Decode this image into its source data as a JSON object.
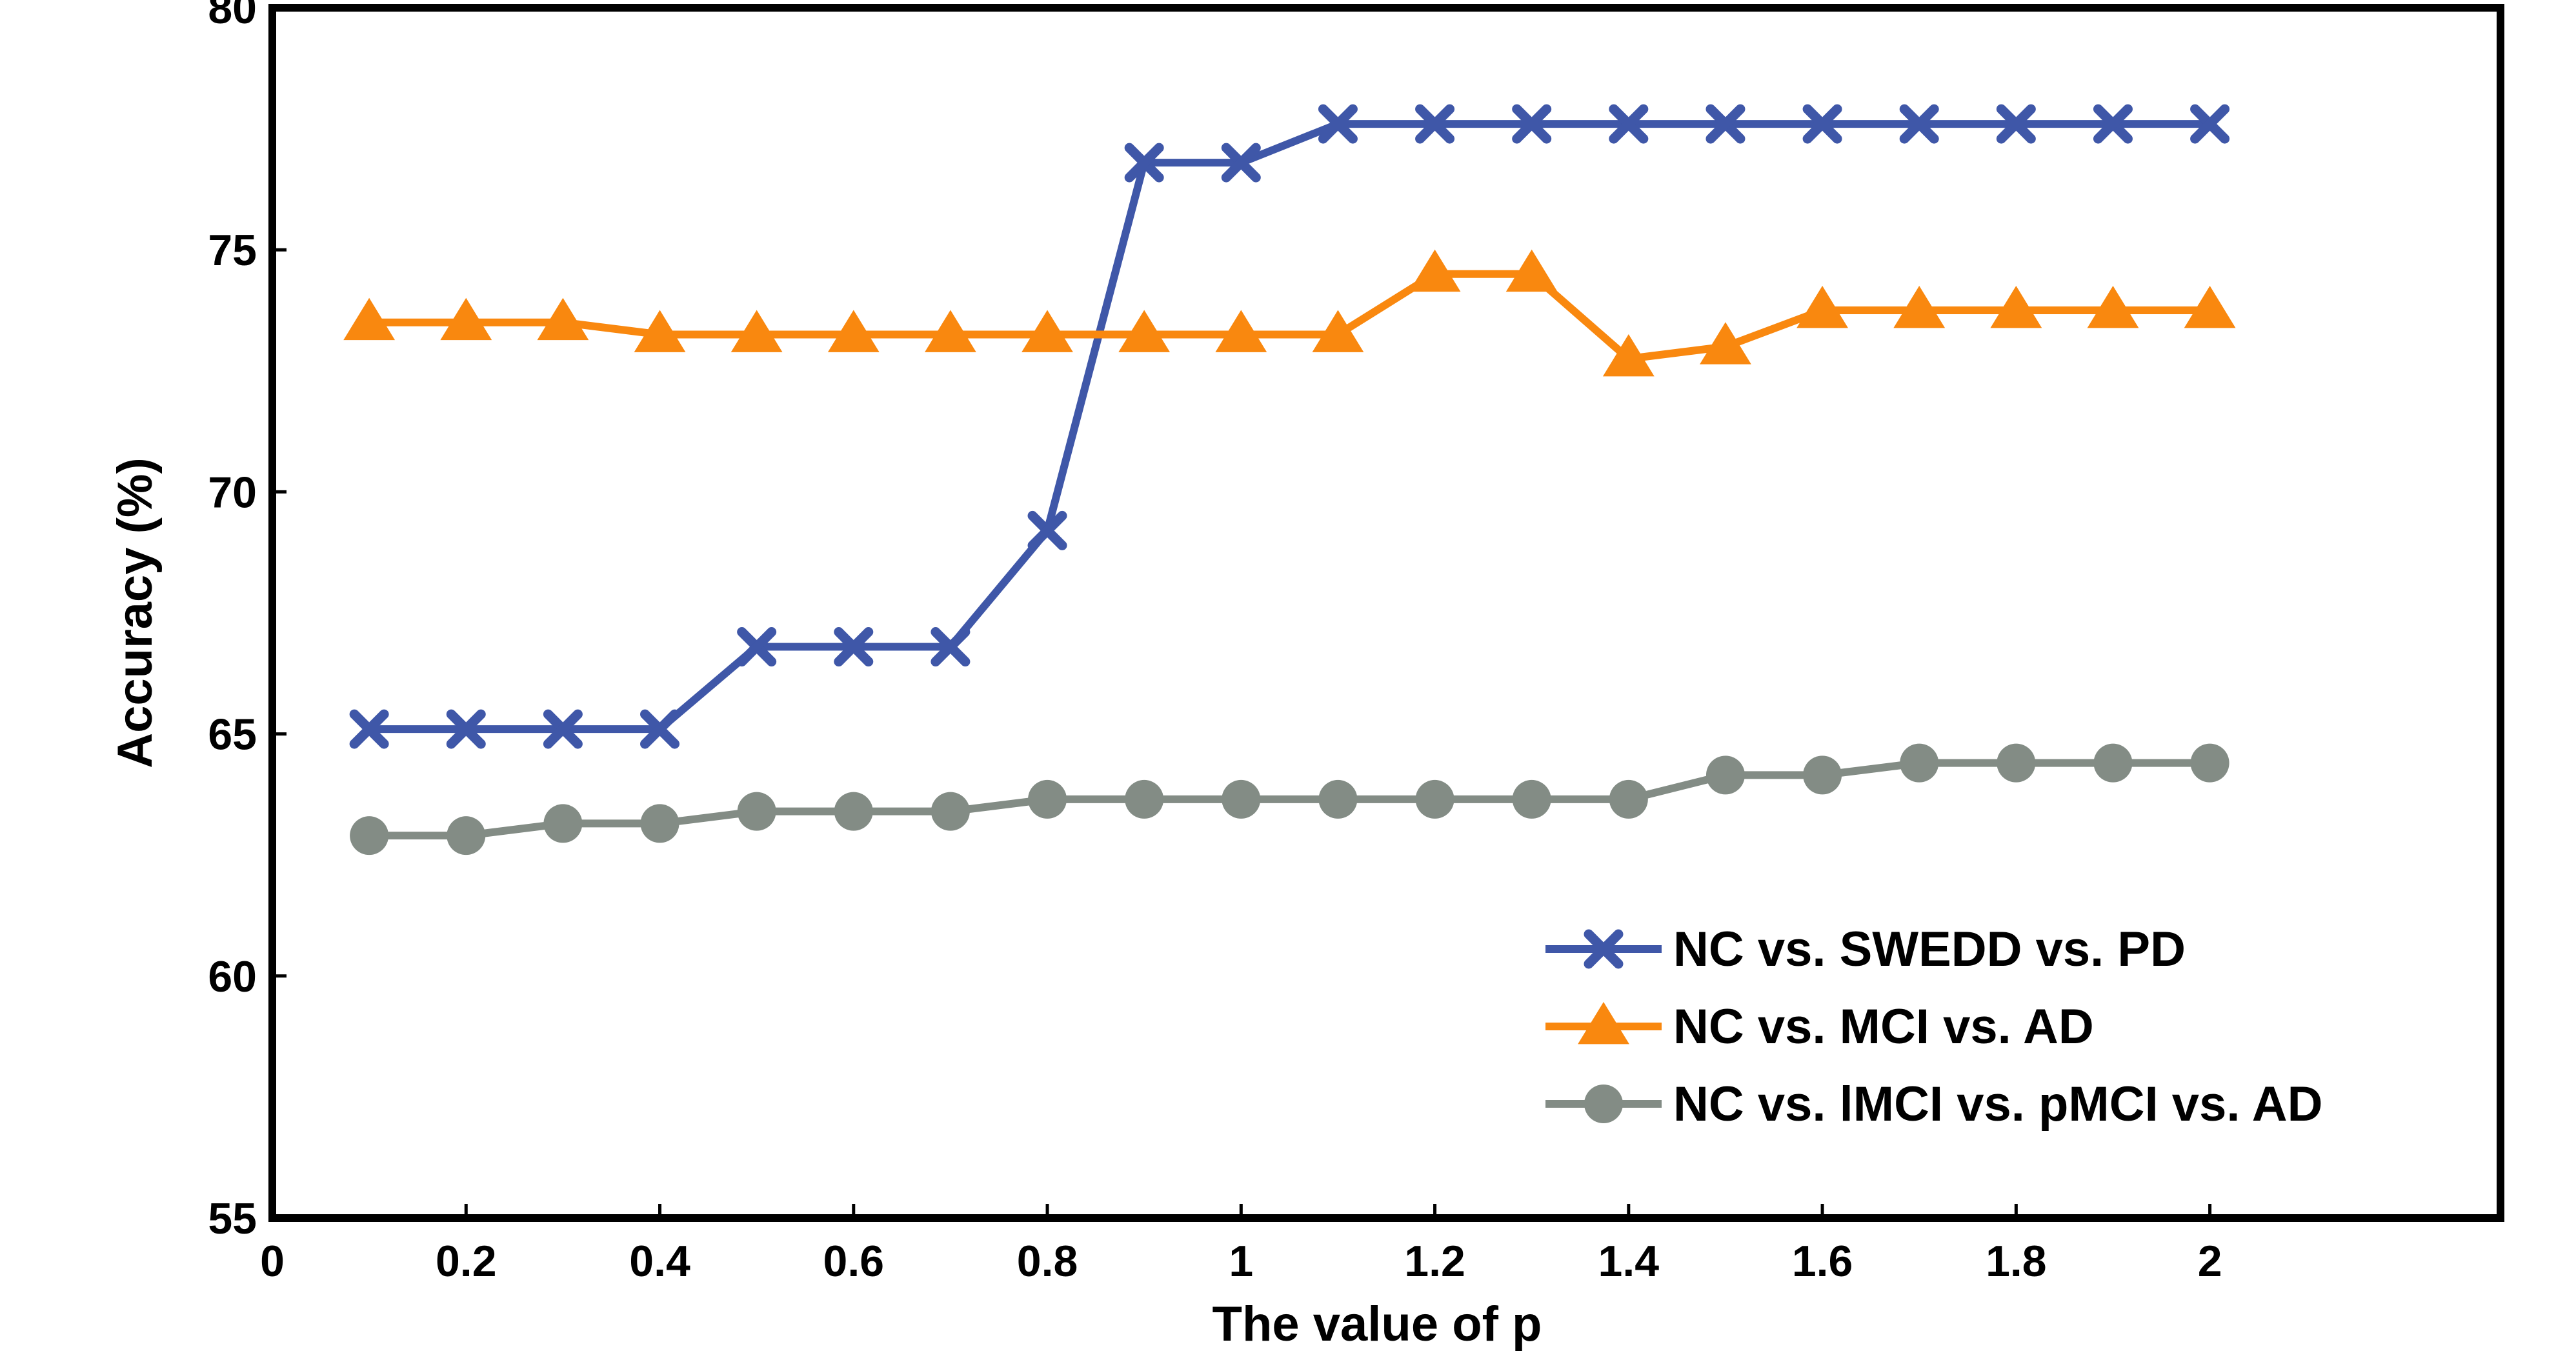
{
  "chart_data": {
    "type": "line",
    "xlabel": "The value of p",
    "ylabel": "Accuracy (%)",
    "xlim": [
      0,
      2.3
    ],
    "ylim": [
      55,
      80
    ],
    "x_ticks": [
      0,
      0.2,
      0.4,
      0.6,
      0.8,
      1,
      1.2,
      1.4,
      1.6,
      1.8,
      2
    ],
    "x_tick_labels": [
      "0",
      "0.2",
      "0.4",
      "0.6",
      "0.8",
      "1",
      "1.2",
      "1.4",
      "1.6",
      "1.8",
      "2"
    ],
    "y_ticks": [
      55,
      60,
      65,
      70,
      75,
      80
    ],
    "y_tick_labels": [
      "55",
      "60",
      "65",
      "70",
      "75",
      "80"
    ],
    "grid": false,
    "legend_position": "bottom-right",
    "x": [
      0.1,
      0.2,
      0.3,
      0.4,
      0.5,
      0.6,
      0.7,
      0.8,
      0.9,
      1.0,
      1.1,
      1.2,
      1.3,
      1.4,
      1.5,
      1.6,
      1.7,
      1.8,
      1.9,
      2.0
    ],
    "series": [
      {
        "name": "NC vs. SWEDD vs. PD",
        "color": "#3f57a8",
        "marker": "x",
        "values": [
          65.1,
          65.1,
          65.1,
          65.1,
          66.8,
          66.8,
          66.8,
          69.2,
          76.8,
          76.8,
          77.6,
          77.6,
          77.6,
          77.6,
          77.6,
          77.6,
          77.6,
          77.6,
          77.6,
          77.6
        ]
      },
      {
        "name": "NC vs. MCI vs. AD",
        "color": "#f9880f",
        "marker": "triangle",
        "values": [
          73.5,
          73.5,
          73.5,
          73.25,
          73.25,
          73.25,
          73.25,
          73.25,
          73.25,
          73.25,
          73.25,
          74.5,
          74.5,
          72.75,
          73.0,
          73.75,
          73.75,
          73.75,
          73.75,
          73.75
        ]
      },
      {
        "name": "NC vs. lMCI vs. pMCI vs. AD",
        "color": "#838c85",
        "marker": "circle",
        "values": [
          62.9,
          62.9,
          63.15,
          63.15,
          63.4,
          63.4,
          63.4,
          63.65,
          63.65,
          63.65,
          63.65,
          63.65,
          63.65,
          63.65,
          64.15,
          64.15,
          64.4,
          64.4,
          64.4,
          64.4
        ]
      }
    ]
  }
}
